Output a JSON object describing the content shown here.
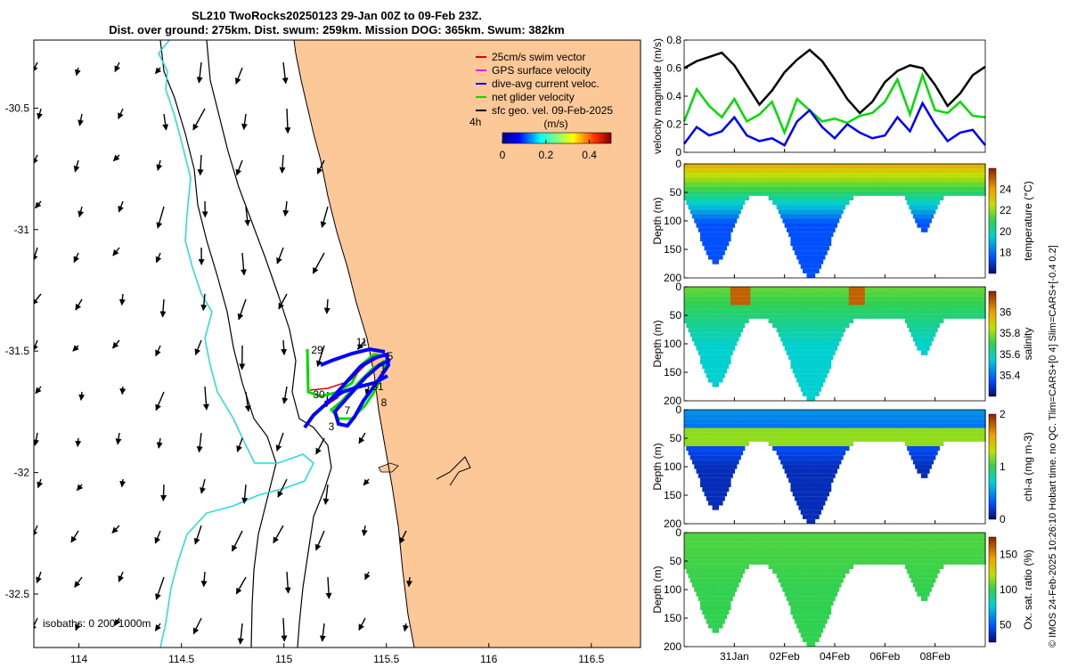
{
  "title": {
    "line1": "SL210 TwoRocks20250123 29-Jan 00Z to 09-Feb 23Z.",
    "line2": "Dist. over ground: 275km. Dist. swum: 259km. Mission DOG: 365km. Swum: 382km"
  },
  "map": {
    "x_ticks": [
      "114",
      "114.5",
      "115",
      "115.5",
      "116",
      "116.5"
    ],
    "y_ticks": [
      "-30.5",
      "-31",
      "-31.5",
      "-32",
      "-32.5"
    ],
    "xlim": [
      113.78,
      116.74
    ],
    "ylim": [
      -32.72,
      -30.22
    ],
    "isobaths_label": "isobaths: 0   200  1000m",
    "legend": [
      {
        "label": "25cm/s swim vector",
        "color": "#e00000"
      },
      {
        "label": "GPS surface velocity",
        "color": "#ff00ff"
      },
      {
        "label": "dive-avg current veloc.",
        "color": "#0000ff"
      },
      {
        "label": "net glider velocity",
        "color": "#00dd00"
      },
      {
        "label": "sfc geo. vel. 09-Feb-2025",
        "color": "#000000"
      }
    ],
    "colorbar": {
      "tag": "4h",
      "unit": "(m/s)",
      "ticks": [
        "0",
        "0.2",
        "0.4"
      ],
      "range": [
        0,
        0.5
      ]
    },
    "day_labels": [
      "29",
      "11",
      "5",
      "1",
      "31",
      "30",
      "7",
      "8",
      "3"
    ],
    "land_color": "#fcc897",
    "shelf_color": "#22dddd"
  },
  "chart_data": [
    {
      "type": "line",
      "ylabel": "velocity magnitude (m/s)",
      "ylim": [
        0,
        0.8
      ],
      "y_ticks": [
        "0",
        "0.2",
        "0.4",
        "0.6",
        "0.8"
      ],
      "series": [
        {
          "color": "#000000",
          "x": [
            0,
            0.5,
            1,
            1.5,
            2,
            2.5,
            3,
            3.5,
            4,
            4.5,
            5,
            5.5,
            6,
            6.5,
            7,
            7.5,
            8,
            8.5,
            9,
            9.5,
            10,
            10.5,
            11,
            11.5,
            12
          ],
          "values": [
            0.6,
            0.65,
            0.68,
            0.71,
            0.62,
            0.48,
            0.34,
            0.44,
            0.57,
            0.66,
            0.73,
            0.65,
            0.52,
            0.38,
            0.28,
            0.36,
            0.5,
            0.58,
            0.62,
            0.6,
            0.48,
            0.33,
            0.42,
            0.55,
            0.61
          ]
        },
        {
          "color": "#00dd00",
          "x": [
            0,
            0.5,
            1,
            1.5,
            2,
            2.5,
            3,
            3.5,
            4,
            4.5,
            5,
            5.5,
            6,
            6.5,
            7,
            7.5,
            8,
            8.5,
            9,
            9.5,
            10,
            10.5,
            11,
            11.5,
            12
          ],
          "values": [
            0.22,
            0.45,
            0.33,
            0.25,
            0.38,
            0.22,
            0.27,
            0.36,
            0.14,
            0.38,
            0.3,
            0.22,
            0.24,
            0.21,
            0.26,
            0.28,
            0.36,
            0.52,
            0.27,
            0.55,
            0.3,
            0.28,
            0.36,
            0.26,
            0.25
          ]
        },
        {
          "color": "#0000ff",
          "x": [
            0,
            0.5,
            1,
            1.5,
            2,
            2.5,
            3,
            3.5,
            4,
            4.5,
            5,
            5.5,
            6,
            6.5,
            7,
            7.5,
            8,
            8.5,
            9,
            9.5,
            10,
            10.5,
            11,
            11.5,
            12
          ],
          "values": [
            0.06,
            0.18,
            0.12,
            0.15,
            0.25,
            0.12,
            0.08,
            0.1,
            0.05,
            0.22,
            0.3,
            0.18,
            0.1,
            0.2,
            0.14,
            0.1,
            0.12,
            0.25,
            0.15,
            0.35,
            0.2,
            0.08,
            0.14,
            0.16,
            0.05
          ]
        }
      ]
    },
    {
      "type": "heatmap",
      "quantity": "temperature",
      "ylabel": "Depth (m)",
      "clabel": "temperature (°C)",
      "ylim": [
        200,
        0
      ],
      "y_ticks": [
        "0",
        "50",
        "100",
        "150",
        "200"
      ],
      "crange": [
        16,
        26
      ],
      "c_ticks": [
        "18",
        "20",
        "22",
        "24"
      ],
      "x_ticks": [
        "31Jan",
        "02Feb",
        "04Feb",
        "06Feb",
        "08Feb"
      ],
      "surface_value": 23.5,
      "deep_value": 17.5
    },
    {
      "type": "heatmap",
      "quantity": "salinity",
      "ylabel": "Depth (m)",
      "clabel": "salinity",
      "ylim": [
        200,
        0
      ],
      "y_ticks": [
        "0",
        "50",
        "100",
        "150",
        "200"
      ],
      "crange": [
        35.2,
        36.2
      ],
      "c_ticks": [
        "35.4",
        "35.6",
        "35.8",
        "36"
      ],
      "x_ticks": [
        "31Jan",
        "02Feb",
        "04Feb",
        "06Feb",
        "08Feb"
      ],
      "surface_value": 35.75,
      "deep_value": 35.55
    },
    {
      "type": "heatmap",
      "quantity": "chl-a",
      "ylabel": "Depth (m)",
      "clabel": "chl-a (mg m-3)",
      "ylim": [
        200,
        0
      ],
      "y_ticks": [
        "0",
        "50",
        "100",
        "150",
        "200"
      ],
      "crange": [
        0,
        2
      ],
      "c_ticks": [
        "0",
        "1",
        "2"
      ],
      "x_ticks": [
        "31Jan",
        "02Feb",
        "04Feb",
        "06Feb",
        "08Feb"
      ],
      "surface_value": 0.5,
      "deep_value": 0.15
    },
    {
      "type": "heatmap",
      "quantity": "oxygen",
      "ylabel": "Depth (m)",
      "clabel": "Ox. sat. ratio (%)",
      "ylim": [
        200,
        0
      ],
      "y_ticks": [
        "0",
        "50",
        "100",
        "150",
        "200"
      ],
      "crange": [
        25,
        175
      ],
      "c_ticks": [
        "50",
        "100",
        "150"
      ],
      "x_ticks": [
        "31Jan",
        "02Feb",
        "04Feb",
        "06Feb",
        "08Feb"
      ],
      "surface_value": 105,
      "deep_value": 100
    }
  ],
  "credit": "© IMOS 24-Feb-2025 10:26:10 Hobart time. no QC. Tlim=CARS+[0 4] Slim=CARS+[-0.4 0.2]",
  "time_axis": {
    "start_label": "29Jan",
    "days": 12,
    "tick_days": [
      2,
      4,
      6,
      8,
      10
    ]
  }
}
